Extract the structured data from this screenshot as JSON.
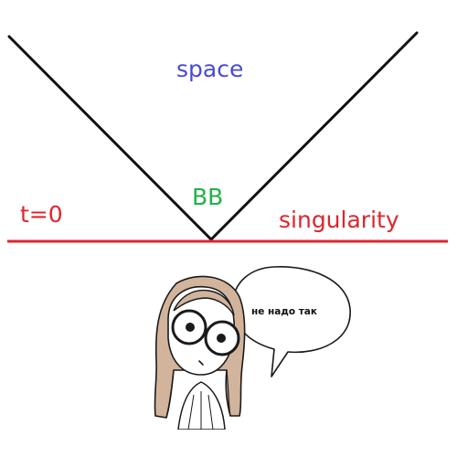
{
  "labels": {
    "space": "space",
    "bb": "BB",
    "t0": "t=0",
    "singularity": "singularity",
    "speech": "не надо так"
  },
  "colors": {
    "space_text": "#4a4ad6",
    "bb_text": "#22b04a",
    "red": "#e0242c",
    "line": "#111111",
    "hair": "#d2b49c",
    "outline": "#1a1a1a"
  },
  "icons": {
    "character": "girl-with-glasses-icon",
    "bubble": "speech-bubble-icon"
  }
}
